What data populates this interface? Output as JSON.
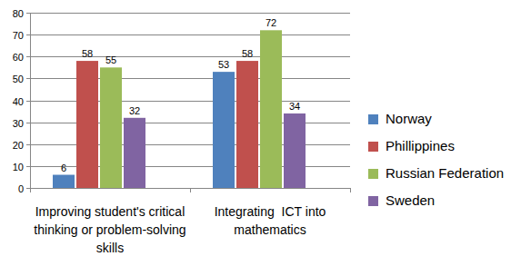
{
  "chart_data": {
    "type": "bar",
    "categories": [
      "Improving student's critical thinking or problem-solving skills",
      "Integrating  ICT into mathematics"
    ],
    "series": [
      {
        "name": "Norway",
        "color": "#4f81bd",
        "values": [
          6,
          53
        ]
      },
      {
        "name": "Phillippines",
        "color": "#c0504d",
        "values": [
          58,
          58
        ]
      },
      {
        "name": "Russian Federation",
        "color": "#9bbb59",
        "values": [
          55,
          72
        ]
      },
      {
        "name": "Sweden",
        "color": "#8064a2",
        "values": [
          32,
          34
        ]
      }
    ],
    "ylim": [
      0,
      80
    ],
    "yticks": [
      0,
      10,
      20,
      30,
      40,
      50,
      60,
      70,
      80
    ],
    "grid": true,
    "legend": "right",
    "data_labels": true
  }
}
